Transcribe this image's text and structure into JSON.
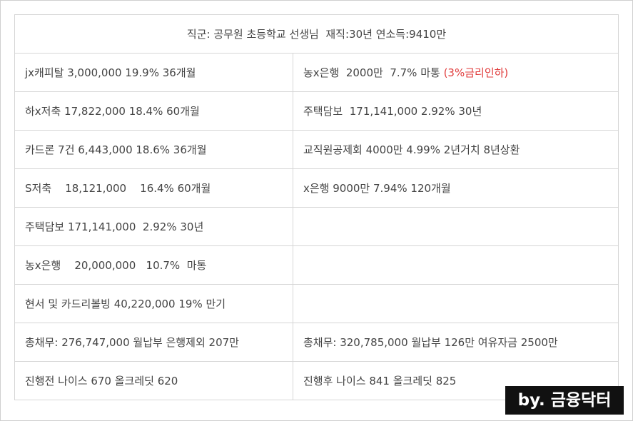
{
  "header": "직군: 공무원 초등학교 선생님  재직:30년 연소득:9410만",
  "rows": [
    {
      "left": "jx캐피탈 3,000,000 19.9% 36개월",
      "right_prefix": "농x은행  2000만  7.7% 마통 ",
      "right_highlight": "(3%금리인하)"
    },
    {
      "left": "하x저축 17,822,000 18.4% 60개월",
      "right": "주택담보  171,141,000 2.92% 30년"
    },
    {
      "left": "카드론 7건 6,443,000 18.6% 36개월",
      "right": "교직원공제회 4000만 4.99% 2년거치 8년상환"
    },
    {
      "left": "S저축    18,121,000    16.4% 60개월",
      "right": "x은행 9000만 7.94% 120개월"
    },
    {
      "left": "주택담보 171,141,000  2.92% 30년",
      "right": ""
    },
    {
      "left": "농x은행    20,000,000   10.7%  마통",
      "right": ""
    },
    {
      "left": "현서 및 카드리볼빙 40,220,000 19% 만기",
      "right": ""
    },
    {
      "left": "총채무: 276,747,000 월납부 은행제외 207만",
      "right": "총채무: 320,785,000 월납부 126만 여유자금 2500만"
    },
    {
      "left": "진행전 나이스 670 올크레딧 620",
      "right": "진행후 나이스 841 올크레딧 825"
    }
  ],
  "watermark": "by. 금융닥터",
  "colors": {
    "text": "#444444",
    "highlight_red": "#e03a3a",
    "border": "#d6d6d6",
    "watermark_bg": "#111111",
    "watermark_text": "#ffffff"
  }
}
